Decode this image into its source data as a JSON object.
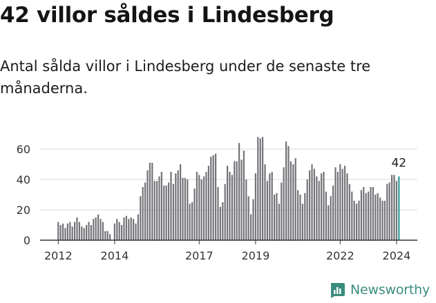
{
  "title": "42 villor såldes i Lindesberg",
  "subtitle": "Antal sålda villor i Lindesberg under de senaste tre månaderna.",
  "brand": {
    "name": "Newsworthy",
    "color": "#3a8c7e"
  },
  "colors": {
    "bar": "#737378",
    "highlight": "#2a9a96",
    "grid": "#d9d9d9"
  },
  "chart_data": {
    "type": "bar",
    "start_month": "2012-01",
    "values": [
      12,
      10,
      11,
      8,
      11,
      12,
      9,
      12,
      15,
      12,
      9,
      8,
      10,
      12,
      10,
      14,
      15,
      17,
      14,
      12,
      6,
      6,
      4,
      0,
      11,
      14,
      12,
      10,
      15,
      16,
      14,
      15,
      14,
      11,
      17,
      29,
      35,
      38,
      46,
      51,
      51,
      39,
      39,
      42,
      45,
      36,
      36,
      38,
      45,
      37,
      44,
      46,
      50,
      41,
      41,
      40,
      24,
      25,
      34,
      45,
      43,
      40,
      42,
      45,
      49,
      55,
      56,
      57,
      35,
      22,
      25,
      37,
      49,
      45,
      43,
      52,
      52,
      64,
      53,
      59,
      40,
      29,
      17,
      27,
      44,
      68,
      67,
      68,
      50,
      39,
      44,
      45,
      30,
      31,
      24,
      38,
      48,
      65,
      62,
      52,
      50,
      54,
      33,
      30,
      24,
      31,
      40,
      46,
      50,
      47,
      42,
      39,
      44,
      45,
      32,
      23,
      29,
      36,
      48,
      45,
      50,
      47,
      49,
      44,
      37,
      32,
      26,
      24,
      26,
      33,
      35,
      31,
      32,
      35,
      35,
      30,
      31,
      28,
      26,
      26,
      37,
      38,
      43,
      43,
      39,
      42
    ],
    "highlight_last": true,
    "last_label": "42",
    "x_ticks": [
      {
        "year": "2012",
        "index": 0
      },
      {
        "year": "2014",
        "index": 24
      },
      {
        "year": "2017",
        "index": 60
      },
      {
        "year": "2019",
        "index": 84
      },
      {
        "year": "2022",
        "index": 120
      },
      {
        "year": "2024",
        "index": 144
      }
    ],
    "y_ticks": [
      0,
      20,
      40,
      60
    ],
    "ylim": [
      0,
      70
    ]
  }
}
